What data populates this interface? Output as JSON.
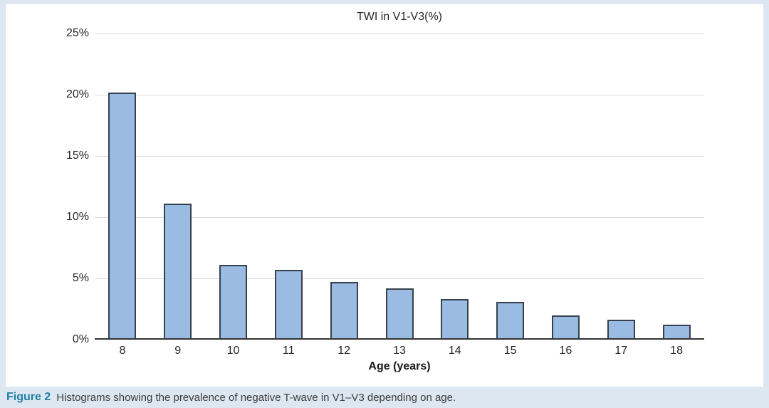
{
  "figure": {
    "caption_label": "Figure 2",
    "caption_text": "Histograms showing the prevalence of negative T-wave in V1–V3 depending on age."
  },
  "chart_data": {
    "type": "bar",
    "title": "TWI in V1-V3(%)",
    "xlabel": "Age (years)",
    "ylabel": "",
    "categories": [
      "8",
      "9",
      "10",
      "11",
      "12",
      "13",
      "14",
      "15",
      "16",
      "17",
      "18"
    ],
    "values": [
      20.2,
      11.1,
      6.1,
      5.7,
      4.7,
      4.2,
      3.3,
      3.1,
      2.0,
      1.6,
      1.2
    ],
    "ylim": [
      0,
      25
    ],
    "yticks": [
      0,
      5,
      10,
      15,
      20,
      25
    ],
    "ytick_labels": [
      "0%",
      "5%",
      "10%",
      "15%",
      "20%",
      "25%"
    ],
    "grid": true,
    "legend": "none",
    "bar_fill": "#9abbe2",
    "bar_border": "#37414e",
    "frame_color": "#dde7f1",
    "gridline_color": "#d9d9d9",
    "axis_line_color": "#333333"
  }
}
